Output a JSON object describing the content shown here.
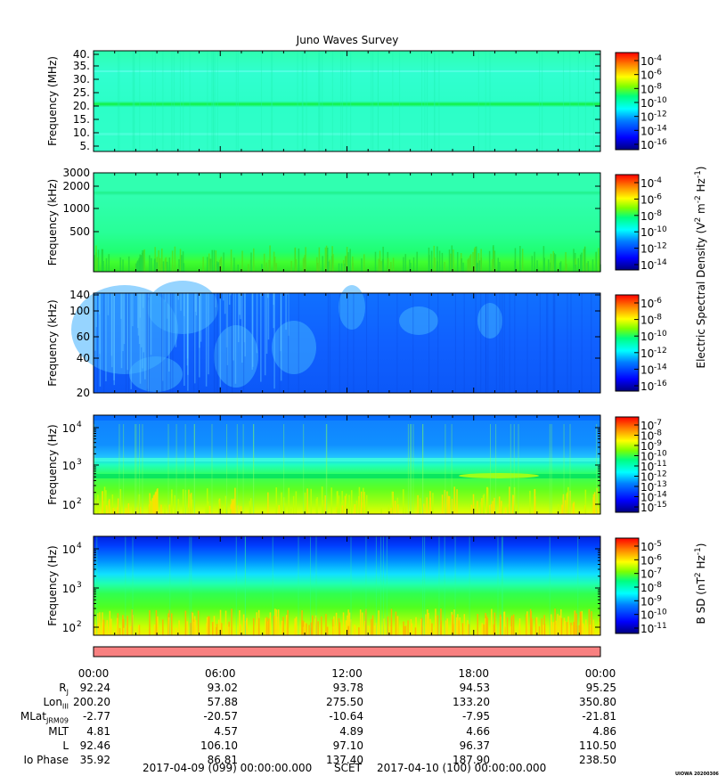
{
  "chart_data": {
    "type": "heatmap",
    "title": "Juno Waves Survey",
    "stamp": "UIOWA 20200306",
    "shared_colorbar_label_e": "Electric Spectral Density (V",
    "colorbar_label_e_html": [
      "Electric Spectral Density (V",
      "2",
      " m",
      "-2",
      " Hz",
      "-1",
      ")"
    ],
    "colorbar_label_b_html": [
      "B SD (nT",
      "2",
      " Hz",
      "-1",
      ")"
    ],
    "x_ticks": [
      "00:00",
      "06:00",
      "12:00",
      "18:00",
      "00:00"
    ],
    "panels": [
      {
        "ylabel": "Frequency (MHz)",
        "yticks": [
          "40.",
          "35.",
          "30.",
          "25.",
          "20.",
          "15.",
          "10.",
          "5."
        ],
        "cbar_base": "10",
        "cbar_exps": [
          "-4",
          "-6",
          "-8",
          "-10",
          "-12",
          "-14",
          "-16"
        ]
      },
      {
        "ylabel": "Frequency (kHz)",
        "yticks": [
          "3000",
          "2000",
          "1000",
          "500"
        ],
        "cbar_base": "10",
        "cbar_exps": [
          "-4",
          "-6",
          "-8",
          "-10",
          "-12",
          "-14"
        ]
      },
      {
        "ylabel": "Frequency (kHz)",
        "yticks": [
          "140",
          "100",
          "60",
          "40",
          "20"
        ],
        "cbar_base": "10",
        "cbar_exps": [
          "-6",
          "-8",
          "-10",
          "-12",
          "-14",
          "-16"
        ]
      },
      {
        "ylabel": "Frequency (Hz)",
        "yticks_base": "10",
        "yticks_exps": [
          "4",
          "3",
          "2"
        ],
        "cbar_base": "10",
        "cbar_exps": [
          "-7",
          "-8",
          "-9",
          "-10",
          "-11",
          "-12",
          "-13",
          "-14",
          "-15"
        ]
      },
      {
        "ylabel": "Frequency (Hz)",
        "yticks_base": "10",
        "yticks_exps": [
          "4",
          "3",
          "2"
        ],
        "cbar_base": "10",
        "cbar_exps": [
          "-5",
          "-6",
          "-7",
          "-8",
          "-9",
          "-10",
          "-11"
        ]
      }
    ],
    "ephemeris": [
      {
        "label": "R",
        "sub": "J",
        "values": [
          "92.24",
          "93.02",
          "93.78",
          "94.53",
          "95.25"
        ]
      },
      {
        "label": "Lon",
        "sub": "III",
        "values": [
          "200.20",
          "57.88",
          "275.50",
          "133.20",
          "350.80"
        ]
      },
      {
        "label": "MLat",
        "sub": "JRM09",
        "values": [
          "-2.77",
          "-20.57",
          "-10.64",
          "-7.95",
          "-21.81"
        ]
      },
      {
        "label": "MLT",
        "sub": "",
        "values": [
          "4.81",
          "4.57",
          "4.89",
          "4.66",
          "4.86"
        ]
      },
      {
        "label": "L",
        "sub": "",
        "values": [
          "92.46",
          "106.10",
          "97.10",
          "96.37",
          "110.50"
        ]
      },
      {
        "label": "Io Phase",
        "sub": "",
        "values": [
          "35.92",
          "86.81",
          "137.40",
          "187.90",
          "238.50"
        ]
      }
    ],
    "footer": {
      "start": "2017-04-09 (099) 00:00:00.000",
      "scet": "SCET",
      "end": "2017-04-10 (100) 00:00:00.000"
    },
    "colors": {
      "status_bar": "#f88080",
      "jet": [
        "#00007f",
        "#0000ff",
        "#007fff",
        "#00ffff",
        "#00ff7f",
        "#7fff00",
        "#ffff00",
        "#ff7f00",
        "#ff0000"
      ]
    }
  }
}
